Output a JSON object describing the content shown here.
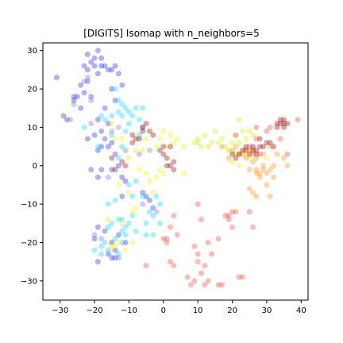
{
  "chart_data": {
    "type": "scatter",
    "title": "[DIGITS] Isomap with n_neighbors=5",
    "xlabel": "",
    "ylabel": "",
    "xlim": [
      -35,
      42
    ],
    "ylim": [
      -35,
      32
    ],
    "xticks": [
      -30,
      -20,
      -10,
      0,
      10,
      20,
      30,
      40
    ],
    "yticks": [
      -30,
      -20,
      -10,
      0,
      10,
      20,
      30
    ],
    "grid": false,
    "legend": "none",
    "marker_alpha": 0.35,
    "colormap": "jet",
    "series": [
      {
        "color": "#1f1fe0",
        "points": [
          [
            -20,
            28
          ],
          [
            -19,
            30
          ],
          [
            -21,
            27
          ],
          [
            -18,
            26
          ],
          [
            -22,
            25
          ],
          [
            -23,
            26
          ],
          [
            -19,
            24
          ],
          [
            -17,
            26
          ],
          [
            -16,
            25
          ],
          [
            -22,
            29
          ],
          [
            -20,
            26
          ],
          [
            -18,
            28
          ],
          [
            -24,
            21
          ],
          [
            -23,
            19
          ],
          [
            -22,
            22
          ],
          [
            -25,
            18
          ],
          [
            -26,
            17
          ],
          [
            -28,
            12
          ],
          [
            -24,
            15
          ],
          [
            -31,
            23
          ],
          [
            -29,
            13
          ],
          [
            -26,
            18
          ],
          [
            -21,
            18
          ],
          [
            -15,
            25
          ],
          [
            -14,
            26
          ],
          [
            -13,
            24
          ],
          [
            -12,
            21
          ],
          [
            -15,
            20
          ],
          [
            -14,
            17
          ],
          [
            -17,
            15
          ],
          [
            -19,
            12
          ],
          [
            -16,
            11
          ],
          [
            -18,
            9
          ],
          [
            -20,
            8
          ],
          [
            -22,
            7
          ],
          [
            -17,
            7
          ],
          [
            -15,
            6
          ],
          [
            -19,
            4
          ],
          [
            -18,
            5
          ],
          [
            -16,
            5
          ],
          [
            -14,
            3
          ],
          [
            -13,
            0
          ],
          [
            -15,
            -1
          ],
          [
            -18,
            -1
          ],
          [
            -21,
            -1
          ],
          [
            -19,
            -3
          ],
          [
            -12,
            -3
          ],
          [
            -11,
            -4
          ],
          [
            -12,
            -8
          ],
          [
            -20,
            -19
          ],
          [
            -19,
            -16
          ],
          [
            -17,
            -17
          ],
          [
            -15,
            -20
          ],
          [
            -14,
            -22
          ],
          [
            -16,
            -23
          ],
          [
            -19,
            -25
          ],
          [
            -13,
            -18
          ],
          [
            -15,
            -24
          ],
          [
            -11,
            -20
          ],
          [
            -14,
            -24
          ],
          [
            -4,
            -9
          ],
          [
            -6,
            -7
          ],
          [
            -3,
            -11
          ],
          [
            -5,
            -8
          ]
        ]
      },
      {
        "color": "#00d4f4",
        "points": [
          [
            -14,
            20
          ],
          [
            -15,
            13
          ],
          [
            -13,
            14
          ],
          [
            -12,
            13
          ],
          [
            -10,
            14
          ],
          [
            -9,
            13
          ],
          [
            -10,
            11
          ],
          [
            -8,
            15
          ],
          [
            -6,
            15
          ],
          [
            -7,
            12
          ],
          [
            -11,
            15
          ],
          [
            -6,
            10
          ],
          [
            -13,
            17
          ],
          [
            -12,
            16
          ],
          [
            -23,
            10
          ],
          [
            -17,
            12
          ],
          [
            -18,
            13
          ],
          [
            -19,
            5
          ],
          [
            -15,
            8
          ],
          [
            -7,
            8
          ],
          [
            -12,
            5
          ],
          [
            -11,
            9
          ],
          [
            -13,
            2
          ],
          [
            -8,
            -4
          ],
          [
            -10,
            -5
          ],
          [
            -9,
            -8
          ],
          [
            -16,
            -10
          ],
          [
            -14,
            -9
          ],
          [
            -16,
            -16
          ],
          [
            -17,
            -20
          ],
          [
            -15,
            -15
          ],
          [
            -13,
            -14
          ],
          [
            -12,
            -17
          ],
          [
            -12,
            -20
          ],
          [
            -18,
            -21
          ],
          [
            -20,
            -22
          ],
          [
            -18,
            -23
          ],
          [
            -16,
            -22
          ],
          [
            -14,
            -19
          ],
          [
            -13,
            -23
          ],
          [
            -11,
            -18
          ],
          [
            -11,
            -16
          ],
          [
            -6,
            -8
          ],
          [
            -4,
            -12
          ],
          [
            -3,
            -13
          ],
          [
            -5,
            -15
          ],
          [
            -1,
            -10
          ],
          [
            -2,
            -8
          ],
          [
            -5,
            -18
          ],
          [
            -12,
            -14
          ],
          [
            -10,
            -15
          ],
          [
            -8,
            -17
          ],
          [
            -9,
            -13
          ],
          [
            -1,
            -15
          ],
          [
            -3,
            -18
          ]
        ]
      },
      {
        "color": "#c8f000",
        "points": [
          [
            10,
            7
          ],
          [
            10,
            6
          ],
          [
            12,
            8
          ],
          [
            15,
            9
          ],
          [
            13,
            5
          ],
          [
            14,
            6
          ],
          [
            18,
            5
          ],
          [
            20,
            6
          ],
          [
            22,
            12
          ],
          [
            23,
            9
          ],
          [
            21,
            8
          ],
          [
            25,
            9
          ],
          [
            19,
            4
          ],
          [
            16,
            6
          ],
          [
            17,
            7
          ],
          [
            11,
            5
          ],
          [
            9,
            6
          ],
          [
            24,
            7
          ],
          [
            22,
            6
          ],
          [
            26,
            8
          ]
        ]
      },
      {
        "color": "#f0f000",
        "points": [
          [
            -15,
            11
          ],
          [
            -14,
            7
          ],
          [
            -12,
            7
          ],
          [
            -8,
            4
          ],
          [
            -10,
            2
          ],
          [
            -13,
            -5
          ],
          [
            -10,
            -7
          ],
          [
            -8,
            -11
          ],
          [
            -9,
            -12
          ],
          [
            -14,
            -21
          ],
          [
            -16,
            -14
          ],
          [
            -12,
            -15
          ],
          [
            -4,
            -4
          ],
          [
            -3,
            -7
          ],
          [
            -2,
            -3
          ],
          [
            -1,
            -1
          ],
          [
            0,
            -2
          ],
          [
            -2,
            5
          ],
          [
            -1,
            7
          ],
          [
            -5,
            7
          ],
          [
            0,
            9
          ],
          [
            2,
            8
          ],
          [
            4,
            7
          ],
          [
            6,
            5
          ],
          [
            3,
            6
          ],
          [
            -6,
            4
          ],
          [
            1,
            5
          ],
          [
            -7,
            -1
          ],
          [
            -5,
            -2
          ],
          [
            -11,
            -22
          ],
          [
            -13,
            -20
          ],
          [
            -9,
            -20
          ],
          [
            -15,
            -21
          ],
          [
            22,
            0
          ],
          [
            20,
            1
          ],
          [
            24,
            3
          ],
          [
            25,
            2
          ],
          [
            21,
            3
          ],
          [
            23,
            4
          ],
          [
            6,
            -2
          ],
          [
            19,
            4
          ],
          [
            30,
            2
          ],
          [
            26,
            4
          ]
        ]
      },
      {
        "color": "#f09010",
        "points": [
          [
            17,
            5
          ],
          [
            21,
            5
          ],
          [
            24,
            2
          ],
          [
            26,
            1
          ],
          [
            25,
            -1
          ],
          [
            27,
            -1
          ],
          [
            27,
            -2
          ],
          [
            28,
            -2
          ],
          [
            29,
            -1
          ],
          [
            30,
            -2
          ],
          [
            28,
            -3
          ],
          [
            29,
            0
          ],
          [
            31,
            -1
          ],
          [
            32,
            0
          ],
          [
            27,
            2
          ],
          [
            23,
            3
          ],
          [
            25,
            4
          ],
          [
            26,
            3
          ],
          [
            31,
            5
          ],
          [
            35,
            2
          ],
          [
            33,
            3
          ],
          [
            26,
            -7
          ],
          [
            27,
            -8
          ],
          [
            31,
            -8
          ],
          [
            25,
            -6
          ],
          [
            20,
            4
          ],
          [
            19,
            2
          ],
          [
            22,
            3
          ],
          [
            36,
            0
          ],
          [
            29,
            3
          ],
          [
            32,
            -3
          ],
          [
            30,
            -5
          ]
        ]
      },
      {
        "color": "#f04030",
        "points": [
          [
            18,
            -13
          ],
          [
            19,
            -13
          ],
          [
            19,
            -14
          ],
          [
            21,
            -12
          ],
          [
            25,
            -12
          ],
          [
            26,
            -16
          ],
          [
            20,
            -16
          ],
          [
            11,
            -14
          ],
          [
            10,
            -10
          ],
          [
            13,
            -20
          ],
          [
            16,
            -19
          ],
          [
            14,
            -23
          ],
          [
            10,
            -23
          ],
          [
            12,
            -26
          ],
          [
            9,
            -30
          ],
          [
            11,
            -28
          ],
          [
            12,
            -31
          ],
          [
            13,
            -30
          ],
          [
            16,
            -31
          ],
          [
            17,
            -31
          ],
          [
            22,
            -29
          ],
          [
            23,
            -29
          ],
          [
            7,
            -29
          ],
          [
            8,
            -31
          ],
          [
            10,
            -25
          ],
          [
            2,
            -25
          ],
          [
            3,
            -26
          ],
          [
            9,
            -21
          ],
          [
            0,
            -19
          ],
          [
            1,
            -20
          ],
          [
            1,
            -19
          ],
          [
            2,
            -16
          ],
          [
            4,
            -18
          ],
          [
            3,
            -13
          ],
          [
            -5,
            -26
          ],
          [
            20,
            -12
          ],
          [
            27,
            10
          ],
          [
            31,
            10
          ],
          [
            30,
            9
          ],
          [
            34,
            7
          ],
          [
            39,
            12
          ],
          [
            36,
            3
          ],
          [
            27,
            7
          ],
          [
            21,
            8
          ],
          [
            25,
            5
          ],
          [
            28,
            3
          ]
        ]
      },
      {
        "color": "#900000",
        "points": [
          [
            -6,
            10
          ],
          [
            -5,
            11
          ],
          [
            -6,
            9
          ],
          [
            -9,
            8
          ],
          [
            -8,
            7
          ],
          [
            -9,
            6
          ],
          [
            -7,
            7
          ],
          [
            -4,
            9
          ],
          [
            -3,
            8
          ],
          [
            -12,
            1
          ],
          [
            -11,
            0
          ],
          [
            -15,
            2
          ],
          [
            -14,
            -1
          ],
          [
            0,
            5
          ],
          [
            2,
            5
          ],
          [
            0,
            3
          ],
          [
            -1,
            4
          ],
          [
            1,
            2
          ],
          [
            2,
            0
          ],
          [
            3,
            1
          ],
          [
            3,
            -1
          ],
          [
            1,
            0
          ],
          [
            20,
            3
          ],
          [
            21,
            2
          ],
          [
            22,
            3
          ],
          [
            23,
            4
          ],
          [
            24,
            4
          ],
          [
            25,
            3
          ],
          [
            26,
            4
          ],
          [
            27,
            4
          ],
          [
            28,
            5
          ],
          [
            27,
            3
          ],
          [
            24,
            5
          ],
          [
            26,
            5
          ],
          [
            29,
            5
          ],
          [
            30,
            6
          ],
          [
            31,
            6
          ],
          [
            33,
            10
          ],
          [
            34,
            11
          ],
          [
            35,
            11
          ],
          [
            35,
            10
          ],
          [
            34,
            12
          ],
          [
            36,
            11
          ],
          [
            33,
            11
          ],
          [
            28,
            7
          ],
          [
            35,
            12
          ],
          [
            32,
            5
          ]
        ]
      },
      {
        "color": "#7070d0",
        "points": [
          [
            -22,
            23
          ],
          [
            -21,
            17
          ],
          [
            -27,
            12
          ],
          [
            -13,
            10
          ],
          [
            -15,
            9
          ],
          [
            -11,
            4
          ],
          [
            -4,
            4
          ],
          [
            -7,
            3
          ],
          [
            -16,
            -3
          ],
          [
            -20,
            -18
          ],
          [
            -18,
            -19
          ],
          [
            -6,
            -10
          ],
          [
            -2,
            -12
          ],
          [
            -13,
            -24
          ],
          [
            -23,
            22
          ],
          [
            -21,
            11
          ],
          [
            -26,
            16
          ]
        ]
      }
    ]
  }
}
